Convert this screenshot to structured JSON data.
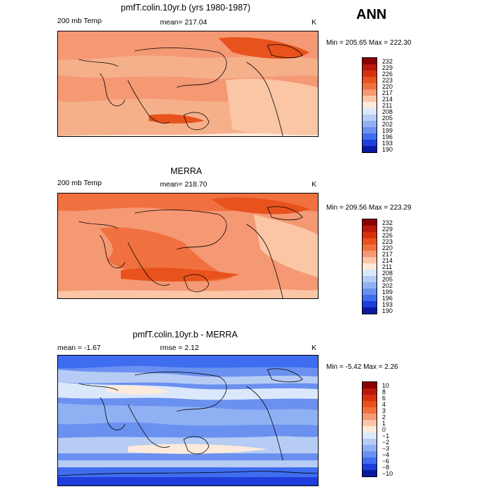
{
  "season": "ANN",
  "panels": [
    {
      "title": "pmfT.colin.10yr.b (yrs 1980-1987)",
      "left_label": "200 mb Temp",
      "center_label": "mean= 217.04",
      "units": "K",
      "minmax": "Min = 205.65 Max = 222.30",
      "colorbar_levels": [
        "232",
        "229",
        "226",
        "223",
        "220",
        "217",
        "214",
        "211",
        "208",
        "205",
        "202",
        "199",
        "196",
        "193",
        "190"
      ]
    },
    {
      "title": "MERRA",
      "left_label": "200 mb Temp",
      "center_label": "mean= 218.70",
      "units": "K",
      "minmax": "Min = 209.56 Max = 223.29",
      "colorbar_levels": [
        "232",
        "229",
        "226",
        "223",
        "220",
        "217",
        "214",
        "211",
        "208",
        "205",
        "202",
        "199",
        "196",
        "193",
        "190"
      ]
    },
    {
      "title": "pmfT.colin.10yr.b - MERRA",
      "left_label": "mean =   -1.67",
      "center_label": "rmse =    2.12",
      "units": "K",
      "minmax": "Min =  -5.42 Max =    2.26",
      "colorbar_levels": [
        "10",
        "8",
        "6",
        "4",
        "3",
        "2",
        "1",
        "0",
        "−1",
        "−2",
        "−3",
        "−4",
        "−6",
        "−8",
        "−10"
      ]
    }
  ],
  "colors": {
    "colorbar": [
      "#8b0000",
      "#b8180e",
      "#d8300f",
      "#e8521c",
      "#f07040",
      "#f59874",
      "#fbc6a6",
      "#fdeadb",
      "#dbe8fb",
      "#b6ccf5",
      "#8fb0f3",
      "#6a90f0",
      "#3f6df0",
      "#1f3edb",
      "#0a1aa0"
    ]
  }
}
